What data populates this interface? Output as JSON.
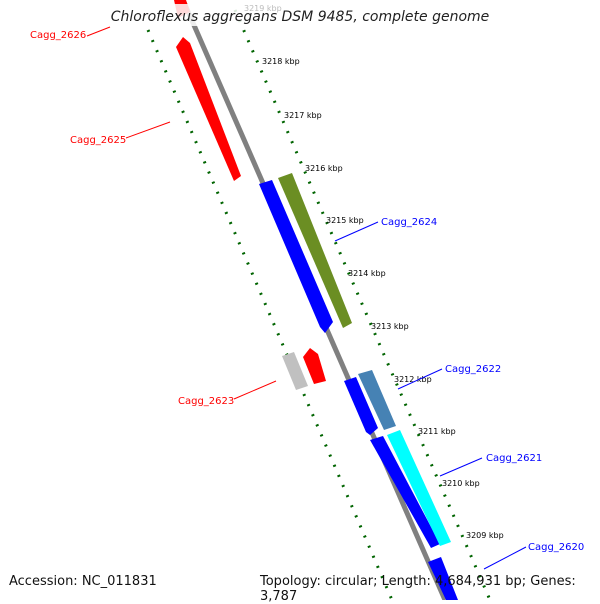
{
  "title": "Chloroflexus aggregans DSM 9485, complete genome",
  "footer": {
    "accession": "Accession: NC_011831",
    "summary": "Topology: circular; Length: 4,684,931 bp; Genes: 3,787"
  },
  "colors": {
    "forward_cds": "#0000ff",
    "reverse_cds": "#ff0000",
    "gc_content": "#006400",
    "backbone": "#808080"
  },
  "ticks": [
    "3219 kbp",
    "3218 kbp",
    "3217 kbp",
    "3216 kbp",
    "3215 kbp",
    "3214 kbp",
    "3213 kbp",
    "3212 kbp",
    "3211 kbp",
    "3210 kbp",
    "3209 kbp"
  ],
  "gene_labels": {
    "cagg_2626": "Cagg_2626",
    "cagg_2625": "Cagg_2625",
    "cagg_2624": "Cagg_2624",
    "cagg_2623": "Cagg_2623",
    "cagg_2622": "Cagg_2622",
    "cagg_2621": "Cagg_2621",
    "cagg_2620": "Cagg_2620"
  }
}
